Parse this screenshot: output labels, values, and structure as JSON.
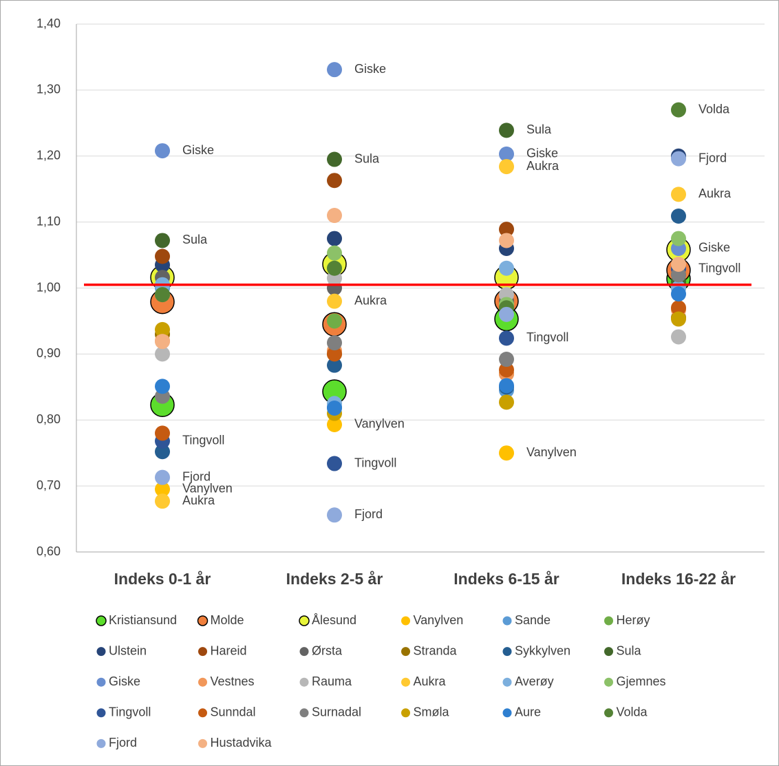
{
  "chart_data": {
    "type": "dot",
    "categories": [
      "Indeks 0-1 år",
      "Indeks 2-5 år",
      "Indeks 6-15 år",
      "Indeks 16-22 år"
    ],
    "ylim": [
      0.6,
      1.4
    ],
    "yticks": [
      {
        "value": 0.6,
        "label": "0,60"
      },
      {
        "value": 0.7,
        "label": "0,70"
      },
      {
        "value": 0.8,
        "label": "0,80"
      },
      {
        "value": 0.9,
        "label": "0,90"
      },
      {
        "value": 1.0,
        "label": "1,00"
      },
      {
        "value": 1.1,
        "label": "1,10"
      },
      {
        "value": 1.2,
        "label": "1,20"
      },
      {
        "value": 1.3,
        "label": "1,30"
      },
      {
        "value": 1.4,
        "label": "1,40"
      }
    ],
    "grid": true,
    "reference_line": {
      "value": 1.005,
      "color": "#ff0000"
    },
    "series": [
      {
        "name": "Kristiansund",
        "color": "#5cdd2c",
        "highlight": true,
        "values": [
          0.823,
          0.843,
          0.953,
          1.014
        ]
      },
      {
        "name": "Molde",
        "color": "#f07f3c",
        "highlight": true,
        "values": [
          0.979,
          0.945,
          0.98,
          1.027
        ]
      },
      {
        "name": "Ålesund",
        "color": "#e8f53a",
        "highlight": true,
        "values": [
          1.016,
          1.036,
          1.016,
          1.058
        ]
      },
      {
        "name": "Vanylven",
        "color": "#ffc000",
        "values": [
          0.695,
          0.793,
          0.75,
          1.0
        ],
        "labels": [
          "Vanylven",
          "Vanylven",
          "Vanylven",
          null
        ]
      },
      {
        "name": "Sande",
        "color": "#5b9bd5",
        "values": [
          1.0,
          0.82,
          0.845,
          1.0
        ]
      },
      {
        "name": "Herøy",
        "color": "#70ad47",
        "values": [
          0.99,
          0.95,
          0.97,
          1.02
        ]
      },
      {
        "name": "Ulstein",
        "color": "#264478",
        "values": [
          1.035,
          1.075,
          1.06,
          1.2
        ]
      },
      {
        "name": "Hareid",
        "color": "#9e480e",
        "values": [
          1.048,
          1.163,
          1.089,
          1.02
        ]
      },
      {
        "name": "Ørsta",
        "color": "#636363",
        "values": [
          1.016,
          1.0,
          0.98,
          1.03
        ]
      },
      {
        "name": "Stranda",
        "color": "#997300",
        "values": [
          0.93,
          0.9,
          0.87,
          0.955
        ]
      },
      {
        "name": "Sykkylven",
        "color": "#255e91",
        "values": [
          0.752,
          0.883,
          0.85,
          1.109
        ]
      },
      {
        "name": "Sula",
        "color": "#43682b",
        "values": [
          1.072,
          1.195,
          1.239,
          1.01
        ],
        "labels": [
          "Sula",
          "Sula",
          "Sula",
          null
        ]
      },
      {
        "name": "Giske",
        "color": "#698ed0",
        "values": [
          1.208,
          1.331,
          1.203,
          1.06
        ],
        "labels": [
          "Giske",
          "Giske",
          "Giske",
          "Giske"
        ]
      },
      {
        "name": "Vestnes",
        "color": "#f1975a",
        "values": [
          0.92,
          0.905,
          0.87,
          0.967
        ]
      },
      {
        "name": "Rauma",
        "color": "#b7b7b7",
        "values": [
          0.9,
          1.015,
          0.99,
          0.926
        ]
      },
      {
        "name": "Aukra",
        "color": "#ffc931",
        "values": [
          0.677,
          0.98,
          1.184,
          1.142
        ],
        "labels": [
          "Aukra",
          "Aukra",
          "Aukra",
          "Aukra"
        ]
      },
      {
        "name": "Averøy",
        "color": "#7cafdd",
        "values": [
          1.005,
          0.825,
          1.03,
          1.0
        ]
      },
      {
        "name": "Gjemnes",
        "color": "#8cc168",
        "values": [
          0.99,
          1.053,
          0.975,
          1.075
        ]
      },
      {
        "name": "Tingvoll",
        "color": "#2f5597",
        "values": [
          0.768,
          0.734,
          0.924,
          1.029
        ],
        "labels": [
          "Tingvoll",
          "Tingvoll",
          "Tingvoll",
          "Tingvoll"
        ]
      },
      {
        "name": "Sunndal",
        "color": "#c55a11",
        "values": [
          0.78,
          0.9,
          0.876,
          0.97
        ]
      },
      {
        "name": "Surnadal",
        "color": "#7f7f7f",
        "values": [
          0.836,
          0.917,
          0.892,
          1.02
        ]
      },
      {
        "name": "Smøla",
        "color": "#c9a000",
        "values": [
          0.937,
          0.81,
          0.827,
          0.953
        ]
      },
      {
        "name": "Aure",
        "color": "#2e7fd0",
        "values": [
          0.851,
          0.818,
          0.852,
          0.991
        ]
      },
      {
        "name": "Volda",
        "color": "#548235",
        "values": [
          0.99,
          1.03,
          0.97,
          1.27
        ],
        "labels": [
          null,
          null,
          null,
          "Volda"
        ]
      },
      {
        "name": "Fjord",
        "color": "#8faadc",
        "values": [
          0.713,
          0.656,
          0.96,
          1.196
        ],
        "labels": [
          "Fjord",
          "Fjord",
          null,
          "Fjord"
        ]
      },
      {
        "name": "Hustadvika",
        "color": "#f4b183",
        "values": [
          0.919,
          1.11,
          1.072,
          1.036
        ]
      }
    ]
  }
}
